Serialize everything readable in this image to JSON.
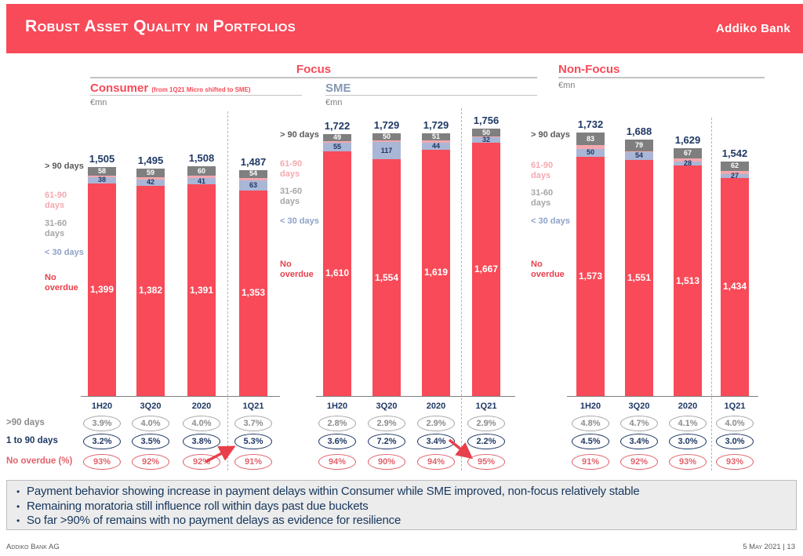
{
  "header": {
    "title": "Robust Asset Quality in Portfolios",
    "logo_text": "Addiko Bank",
    "band_color": "#F84A58"
  },
  "sections": {
    "focus": "Focus",
    "nonfocus": "Non-Focus",
    "unit": "€mn"
  },
  "legend": {
    "items": [
      {
        "label": "> 90 days",
        "color": "#595959"
      },
      {
        "label": "61-90 days",
        "color": "#F4A9AF"
      },
      {
        "label": "31-60 days",
        "color": "#A6A6A6"
      },
      {
        "label": "< 30 days",
        "color": "#8FA2C8"
      },
      {
        "label": "No overdue",
        "color": "#E8404B"
      }
    ]
  },
  "table_rows": [
    {
      "label": ">90 days",
      "border": "#A6A6A6",
      "text": "#8C8C8C"
    },
    {
      "label": "1 to 90 days",
      "border": "#1F3864",
      "text": "#1F3864"
    },
    {
      "label": "No overdue (%)",
      "border": "#E2626B",
      "text": "#E2626B"
    }
  ],
  "chart_data": [
    {
      "type": "bar",
      "stacked": true,
      "title": "Consumer",
      "note": "(from 1Q21 Micro shifted to SME)",
      "section": "Focus",
      "unit": "€mn",
      "categories": [
        "1H20",
        "3Q20",
        "2020",
        "1Q21"
      ],
      "totals": [
        1505,
        1495,
        1508,
        1487
      ],
      "series": [
        {
          "key": "gt90",
          "name": "> 90 days",
          "color": "#7F7F7F",
          "label_color": "#FFFFFF",
          "show_labels": true,
          "big_label": false,
          "values": [
            58,
            59,
            60,
            54
          ]
        },
        {
          "key": "mid",
          "name": "31-90 days (unlabeled slivers)",
          "color": "#F3A8AE",
          "label_color": "",
          "show_labels": false,
          "big_label": false,
          "values": [
            10,
            12,
            16,
            17
          ]
        },
        {
          "key": "lt30",
          "name": "< 30 days",
          "color": "#A9B6D6",
          "label_color": "#1F3864",
          "show_labels": true,
          "big_label": false,
          "values": [
            38,
            42,
            41,
            63
          ]
        },
        {
          "key": "none",
          "name": "No overdue",
          "color": "#F84A58",
          "label_color": "#FFFFFF",
          "show_labels": true,
          "big_label": true,
          "values": [
            1399,
            1382,
            1391,
            1353
          ]
        }
      ],
      "table": [
        {
          "row": ">90 days",
          "values": [
            "3.9%",
            "4.0%",
            "4.0%",
            "3.7%"
          ]
        },
        {
          "row": "1 to 90 days",
          "values": [
            "3.2%",
            "3.5%",
            "3.8%",
            "5.3%"
          ]
        },
        {
          "row": "No overdue (%)",
          "values": [
            "93%",
            "92%",
            "92%",
            "91%"
          ]
        }
      ],
      "arrow": "up-right"
    },
    {
      "type": "bar",
      "stacked": true,
      "title": "SME",
      "note": "",
      "section": "Focus",
      "unit": "€mn",
      "categories": [
        "1H20",
        "3Q20",
        "2020",
        "1Q21"
      ],
      "totals": [
        1722,
        1729,
        1729,
        1756
      ],
      "series": [
        {
          "key": "gt90",
          "name": "> 90 days",
          "color": "#7F7F7F",
          "label_color": "#FFFFFF",
          "show_labels": true,
          "big_label": false,
          "values": [
            49,
            50,
            51,
            50
          ]
        },
        {
          "key": "mid",
          "name": "31-90 days (unlabeled slivers)",
          "color": "#F3A8AE",
          "label_color": "",
          "show_labels": false,
          "big_label": false,
          "values": [
            8,
            8,
            15,
            7
          ]
        },
        {
          "key": "lt30",
          "name": "< 30 days",
          "color": "#A9B6D6",
          "label_color": "#1F3864",
          "show_labels": true,
          "big_label": false,
          "values": [
            55,
            117,
            44,
            32
          ]
        },
        {
          "key": "none",
          "name": "No overdue",
          "color": "#F84A58",
          "label_color": "#FFFFFF",
          "show_labels": true,
          "big_label": true,
          "values": [
            1610,
            1554,
            1619,
            1667
          ]
        }
      ],
      "table": [
        {
          "row": ">90 days",
          "values": [
            "2.8%",
            "2.9%",
            "2.9%",
            "2.9%"
          ]
        },
        {
          "row": "1 to 90 days",
          "values": [
            "3.6%",
            "7.2%",
            "3.4%",
            "2.2%"
          ]
        },
        {
          "row": "No overdue (%)",
          "values": [
            "94%",
            "90%",
            "94%",
            "95%"
          ]
        }
      ],
      "arrow": "down-right"
    },
    {
      "type": "bar",
      "stacked": true,
      "title": "Non-Focus",
      "note": "",
      "section": "Non-Focus",
      "unit": "€mn",
      "categories": [
        "1H20",
        "3Q20",
        "2020",
        "1Q21"
      ],
      "totals": [
        1732,
        1688,
        1629,
        1542
      ],
      "series": [
        {
          "key": "gt90",
          "name": "> 90 days",
          "color": "#7F7F7F",
          "label_color": "#FFFFFF",
          "show_labels": true,
          "big_label": false,
          "values": [
            83,
            79,
            67,
            62
          ]
        },
        {
          "key": "mid",
          "name": "31-90 days (unlabeled slivers)",
          "color": "#F3A8AE",
          "label_color": "",
          "show_labels": false,
          "big_label": false,
          "values": [
            26,
            4,
            21,
            19
          ]
        },
        {
          "key": "lt30",
          "name": "< 30 days",
          "color": "#A9B6D6",
          "label_color": "#1F3864",
          "show_labels": true,
          "big_label": false,
          "values": [
            50,
            54,
            28,
            27
          ]
        },
        {
          "key": "none",
          "name": "No overdue",
          "color": "#F84A58",
          "label_color": "#FFFFFF",
          "show_labels": true,
          "big_label": true,
          "values": [
            1573,
            1551,
            1513,
            1434
          ]
        }
      ],
      "table": [
        {
          "row": ">90 days",
          "values": [
            "4.8%",
            "4.7%",
            "4.1%",
            "4.0%"
          ]
        },
        {
          "row": "1 to 90 days",
          "values": [
            "4.5%",
            "3.4%",
            "3.0%",
            "3.0%"
          ]
        },
        {
          "row": "No overdue (%)",
          "values": [
            "91%",
            "92%",
            "93%",
            "93%"
          ]
        }
      ],
      "arrow": null
    }
  ],
  "bullets": {
    "items": [
      "Payment behavior showing increase in payment delays within Consumer while SME improved, non-focus relatively stable",
      "Remaining moratoria still influence roll within days past due buckets",
      "So far >90% of remains with no payment delays as evidence for resilience"
    ]
  },
  "footer": {
    "left": "Addiko Bank AG",
    "right": "5 May 2021 | 13"
  }
}
